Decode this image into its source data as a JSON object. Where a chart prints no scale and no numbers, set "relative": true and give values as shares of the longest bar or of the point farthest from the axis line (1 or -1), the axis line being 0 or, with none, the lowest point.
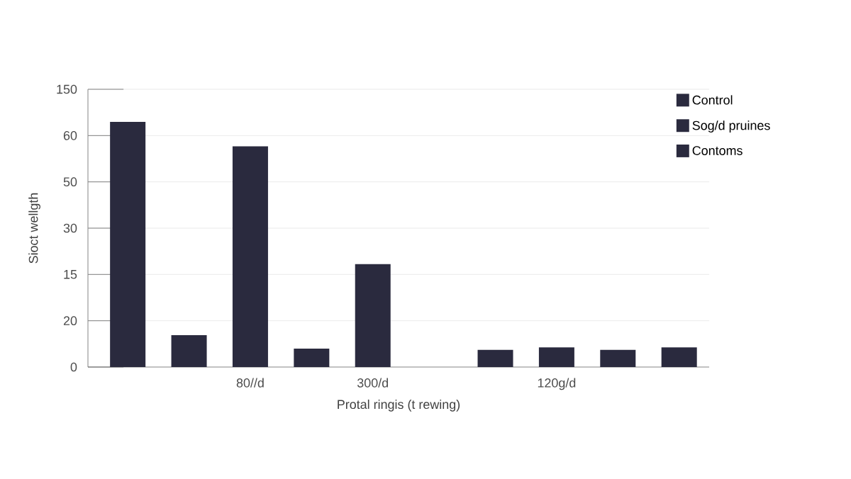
{
  "chart_data": {
    "type": "bar",
    "xlabel": "Protal ringis (t rewing)",
    "ylabel": "Sioct wellgth",
    "relative": true,
    "annotations": [
      "0",
      "20",
      "15",
      "30",
      "50",
      "60",
      "150"
    ],
    "categories": [
      null,
      null,
      "80//d",
      null,
      "300/d",
      null,
      null,
      "120g/d",
      null,
      null
    ],
    "series": [
      {
        "name": "Control",
        "color": "#2a2a3e",
        "values": [
          1,
          null,
          null,
          0.075,
          null,
          null,
          0.07,
          null,
          null,
          0.08
        ]
      },
      {
        "name": "Sog/d pruines",
        "color": "#2a2a3e",
        "values": [
          null,
          0.13,
          null,
          null,
          0.42,
          null,
          null,
          0.08,
          null,
          null
        ]
      },
      {
        "name": "Contoms",
        "color": "#2a2a3e",
        "values": [
          null,
          null,
          0.9,
          null,
          null,
          null,
          null,
          null,
          0.07,
          null
        ]
      }
    ],
    "grid": "y",
    "legend": "top right"
  }
}
